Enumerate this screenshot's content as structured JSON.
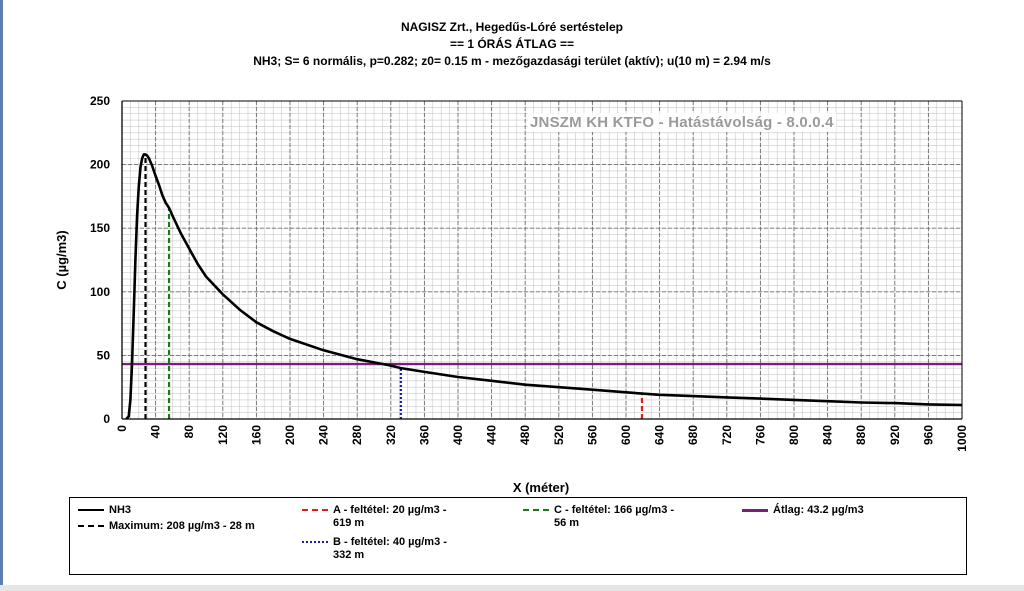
{
  "colors": {
    "series": "#000000",
    "maximum": "#000000",
    "cond_a": "#e02020",
    "cond_b": "#1a1ab0",
    "cond_c": "#1a7a1a",
    "average": "#7b1d7b",
    "grid_major": "#6e6e6e",
    "grid_minor": "#c9c9c9"
  },
  "chart_data": {
    "type": "line",
    "title": "NAGISZ Zrt., Hegedűs-Lóré sertéstelep",
    "subtitle": "== 1 ÓRÁS ÁTLAG ==",
    "subtitle2": "NH3; S= 6 normális, p=0.282; z0= 0.15 m - mezőgazdasági terület (aktív); u(10 m) = 2.94 m/s",
    "xlabel": "X (méter)",
    "ylabel": "C (µg/m3)",
    "xlim": [
      0,
      1000
    ],
    "ylim": [
      0,
      250
    ],
    "xticks": [
      0,
      40,
      80,
      120,
      160,
      200,
      240,
      280,
      320,
      360,
      400,
      440,
      480,
      520,
      560,
      600,
      640,
      680,
      720,
      760,
      800,
      840,
      880,
      920,
      960,
      1000
    ],
    "yticks": [
      0,
      50,
      100,
      150,
      200,
      250
    ],
    "grid": true,
    "watermark": "JNSZM KH KTFO - Hatástávolság  - 8.0.0.4",
    "series": [
      {
        "name": "NH3",
        "x": [
          5,
          8,
          10,
          12,
          14,
          16,
          18,
          20,
          22,
          24,
          26,
          28,
          30,
          32,
          34,
          36,
          38,
          40,
          44,
          48,
          52,
          56,
          60,
          70,
          80,
          90,
          100,
          120,
          140,
          160,
          180,
          200,
          240,
          280,
          320,
          332,
          360,
          400,
          440,
          480,
          520,
          560,
          600,
          619,
          640,
          680,
          720,
          760,
          800,
          840,
          880,
          920,
          960,
          1000
        ],
        "values": [
          0,
          2,
          15,
          45,
          85,
          125,
          160,
          183,
          198,
          205,
          208,
          208,
          207,
          205,
          202,
          199,
          195,
          191,
          184,
          176,
          170,
          166,
          160,
          146,
          134,
          122,
          112,
          98,
          86,
          76,
          69,
          63,
          54,
          47,
          42,
          40,
          37,
          33,
          30,
          27,
          25,
          23,
          21,
          20,
          19,
          18,
          17,
          16,
          15,
          14,
          13,
          12.5,
          11.5,
          11
        ]
      }
    ],
    "markers": [
      {
        "name": "Maximum",
        "x": 28,
        "y": 208,
        "style": "dashed",
        "color": "#000000"
      },
      {
        "name": "A",
        "x": 619,
        "y": 20,
        "style": "dashed",
        "color": "#e02020"
      },
      {
        "name": "B",
        "x": 332,
        "y": 40,
        "style": "dotted",
        "color": "#1a1ab0"
      },
      {
        "name": "C",
        "x": 56,
        "y": 166,
        "style": "dashed",
        "color": "#1a7a1a"
      }
    ],
    "average": {
      "name": "Átlag",
      "value": 43.2,
      "color": "#7b1d7b"
    }
  },
  "legend": {
    "nh3": "NH3",
    "maximum": "Maximum: 208 µg/m3 - 28 m",
    "a_line1": "A - feltétel: 20 µg/m3 -",
    "a_line2": "619 m",
    "b_line1": "B - feltétel: 40 µg/m3 -",
    "b_line2": "332 m",
    "c_line1": "C - feltétel: 166 µg/m3 -",
    "c_line2": "56 m",
    "atlag": "Átlag: 43.2 µg/m3"
  }
}
